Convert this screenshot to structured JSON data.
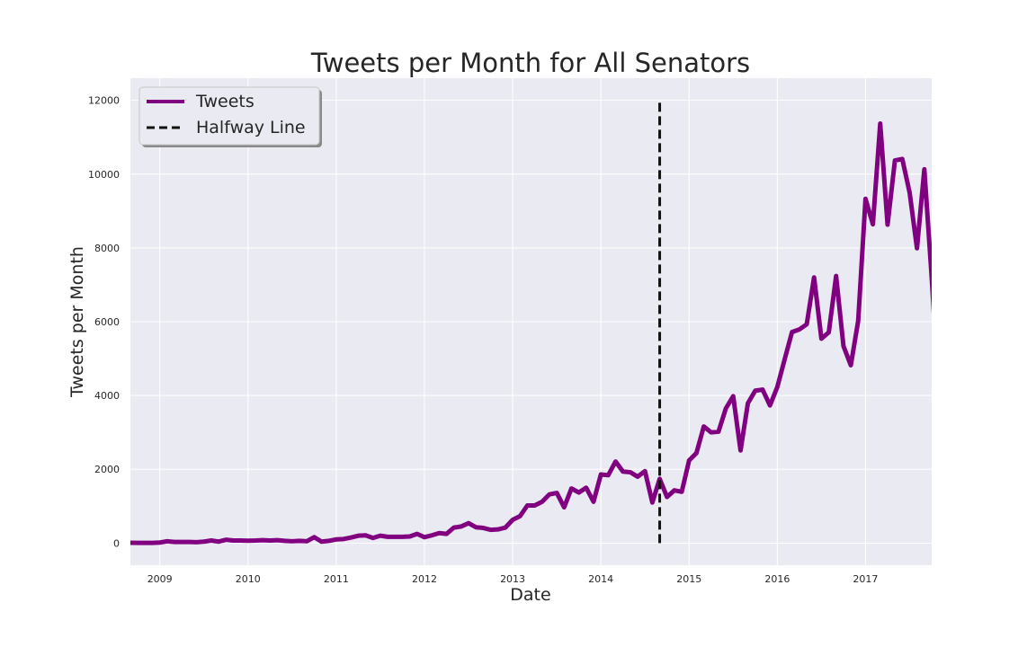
{
  "chart_data": {
    "type": "line",
    "title": "Tweets per Month for All Senators",
    "xlabel": "Date",
    "ylabel": "Tweets per Month",
    "x_ticks": [
      "2009",
      "2010",
      "2011",
      "2012",
      "2013",
      "2014",
      "2015",
      "2016",
      "2017"
    ],
    "y_ticks": [
      "0",
      "2000",
      "4000",
      "6000",
      "8000",
      "10000",
      "12000"
    ],
    "xlim": [
      "2008-09",
      "2017-10"
    ],
    "ylim": [
      -600,
      12600
    ],
    "grid": true,
    "legend_position": "top-left",
    "halfway_line": {
      "x": "2014-09",
      "y_range": [
        0,
        12000
      ]
    },
    "series": [
      {
        "name": "Tweets",
        "color": "#800080",
        "line_style": "solid",
        "x": [
          "2008-09",
          "2008-10",
          "2008-11",
          "2008-12",
          "2009-01",
          "2009-02",
          "2009-03",
          "2009-04",
          "2009-05",
          "2009-06",
          "2009-07",
          "2009-08",
          "2009-09",
          "2009-10",
          "2009-11",
          "2009-12",
          "2010-01",
          "2010-02",
          "2010-03",
          "2010-04",
          "2010-05",
          "2010-06",
          "2010-07",
          "2010-08",
          "2010-09",
          "2010-10",
          "2010-11",
          "2010-12",
          "2011-01",
          "2011-02",
          "2011-03",
          "2011-04",
          "2011-05",
          "2011-06",
          "2011-07",
          "2011-08",
          "2011-09",
          "2011-10",
          "2011-11",
          "2011-12",
          "2012-01",
          "2012-02",
          "2012-03",
          "2012-04",
          "2012-05",
          "2012-06",
          "2012-07",
          "2012-08",
          "2012-09",
          "2012-10",
          "2012-11",
          "2012-12",
          "2013-01",
          "2013-02",
          "2013-03",
          "2013-04",
          "2013-05",
          "2013-06",
          "2013-07",
          "2013-08",
          "2013-09",
          "2013-10",
          "2013-11",
          "2013-12",
          "2014-01",
          "2014-02",
          "2014-03",
          "2014-04",
          "2014-05",
          "2014-06",
          "2014-07",
          "2014-08",
          "2014-09",
          "2014-10",
          "2014-11",
          "2014-12",
          "2015-01",
          "2015-02",
          "2015-03",
          "2015-04",
          "2015-05",
          "2015-06",
          "2015-07",
          "2015-08",
          "2015-09",
          "2015-10",
          "2015-11",
          "2015-12",
          "2016-01",
          "2016-02",
          "2016-03",
          "2016-04",
          "2016-05",
          "2016-06",
          "2016-07",
          "2016-08",
          "2016-09",
          "2016-10",
          "2016-11",
          "2016-12",
          "2017-01",
          "2017-02",
          "2017-03",
          "2017-04",
          "2017-05",
          "2017-06",
          "2017-07",
          "2017-08",
          "2017-09",
          "2017-10",
          "2017-10-14"
        ],
        "y": [
          10,
          5,
          5,
          5,
          15,
          50,
          30,
          30,
          30,
          25,
          40,
          70,
          40,
          90,
          70,
          70,
          65,
          70,
          80,
          70,
          80,
          60,
          50,
          60,
          50,
          160,
          40,
          60,
          100,
          110,
          150,
          200,
          210,
          140,
          200,
          170,
          170,
          170,
          180,
          250,
          160,
          210,
          270,
          250,
          420,
          450,
          540,
          430,
          410,
          360,
          370,
          420,
          630,
          730,
          1020,
          1020,
          1120,
          1320,
          1360,
          970,
          1480,
          1370,
          1500,
          1120,
          1860,
          1840,
          2210,
          1940,
          1920,
          1800,
          1950,
          1100,
          1740,
          1250,
          1430,
          1390,
          2240,
          2440,
          3160,
          3000,
          3020,
          3650,
          3980,
          2510,
          3790,
          4130,
          4160,
          3730,
          4230,
          4980,
          5720,
          5790,
          5930,
          7200,
          5540,
          5710,
          7240,
          5340,
          4820,
          6020,
          9330,
          8640,
          11370,
          8630,
          10370,
          10410,
          9500,
          7990,
          10130,
          7200,
          5840
        ]
      }
    ],
    "legend": [
      {
        "label": "Tweets",
        "color": "#800080",
        "line_style": "solid"
      },
      {
        "label": "Halfway Line",
        "color": "#111111",
        "line_style": "dashed"
      }
    ]
  }
}
